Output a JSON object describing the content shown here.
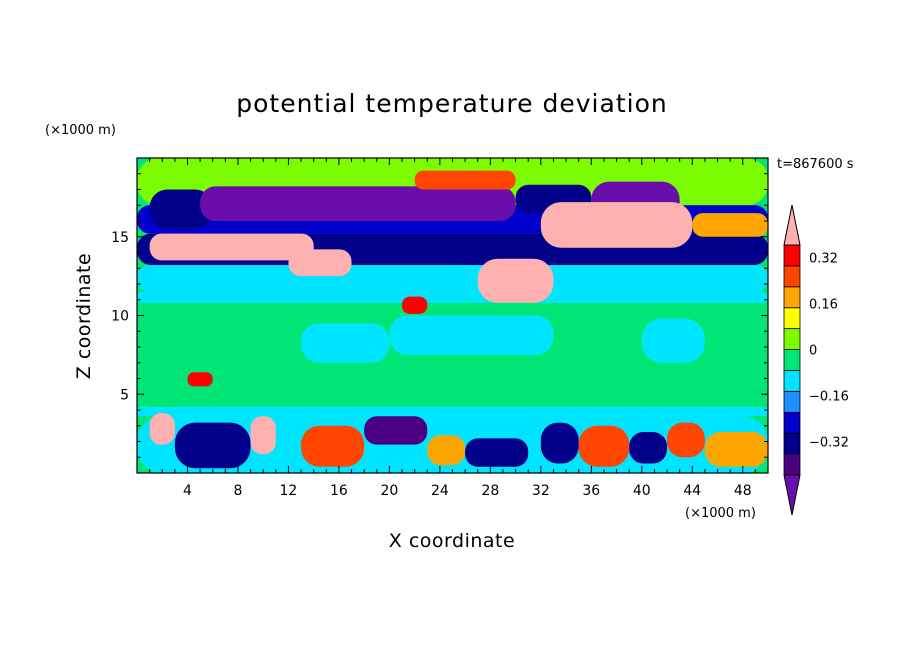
{
  "chart_data": {
    "type": "heatmap",
    "title": "potential temperature deviation",
    "xlabel": "X coordinate",
    "ylabel": "Z coordinate",
    "x_unit": "(×1000 m)",
    "y_unit": "(×1000 m)",
    "time_label": "t=867600 s",
    "xlim": [
      0,
      50
    ],
    "ylim": [
      0,
      20
    ],
    "x_ticks": [
      4,
      8,
      12,
      16,
      20,
      24,
      28,
      32,
      36,
      40,
      44,
      48
    ],
    "y_ticks": [
      5,
      10,
      15
    ],
    "colorbar": {
      "levels": [
        -0.48,
        -0.4,
        -0.32,
        -0.24,
        -0.16,
        -0.08,
        0,
        0.08,
        0.16,
        0.24,
        0.32,
        0.4,
        0.48
      ],
      "colors": [
        "#6a0dad",
        "#4b0082",
        "#00008b",
        "#0000cd",
        "#1e90ff",
        "#00e5ff",
        "#00e676",
        "#7cfc00",
        "#ffff00",
        "#ffa500",
        "#ff4500",
        "#ff0000",
        "#ffb0b0"
      ],
      "tick_values": [
        -0.32,
        -0.16,
        0,
        0.16,
        0.32
      ],
      "tick_labels": [
        "−0.32",
        "−0.16",
        "0",
        "0.16",
        "0.32"
      ]
    },
    "background_value": 0.04,
    "regions": [
      {
        "x": [
          0,
          50
        ],
        "z": [
          17.0,
          20.0
        ],
        "value": 0.12
      },
      {
        "x": [
          0,
          50
        ],
        "z": [
          15.2,
          17.0
        ],
        "value": -0.2
      },
      {
        "x": [
          0,
          50
        ],
        "z": [
          13.2,
          15.2
        ],
        "value": -0.36
      },
      {
        "x": [
          0,
          50
        ],
        "z": [
          11.5,
          13.2
        ],
        "value": -0.12
      },
      {
        "x": [
          0,
          50
        ],
        "z": [
          10.8,
          11.5
        ],
        "value": -0.04
      },
      {
        "x": [
          0,
          50
        ],
        "z": [
          3.6,
          4.2
        ],
        "value": -0.04
      },
      {
        "x": [
          1,
          6
        ],
        "z": [
          15.5,
          18.0
        ],
        "value": -0.28
      },
      {
        "x": [
          5,
          30
        ],
        "z": [
          16.0,
          18.2
        ],
        "value": -0.44
      },
      {
        "x": [
          22,
          30
        ],
        "z": [
          18.0,
          19.2
        ],
        "value": 0.32
      },
      {
        "x": [
          30,
          36
        ],
        "z": [
          16.5,
          18.3
        ],
        "value": -0.28
      },
      {
        "x": [
          36,
          43
        ],
        "z": [
          16.0,
          18.5
        ],
        "value": -0.44
      },
      {
        "x": [
          44,
          50
        ],
        "z": [
          15.0,
          16.5
        ],
        "value": 0.24
      },
      {
        "x": [
          1,
          14
        ],
        "z": [
          13.5,
          15.2
        ],
        "value": 0.48
      },
      {
        "x": [
          12,
          17
        ],
        "z": [
          12.5,
          14.2
        ],
        "value": 0.48
      },
      {
        "x": [
          32,
          44
        ],
        "z": [
          14.3,
          17.2
        ],
        "value": 0.48
      },
      {
        "x": [
          27,
          33
        ],
        "z": [
          10.8,
          13.6
        ],
        "value": 0.48
      },
      {
        "x": [
          21,
          23
        ],
        "z": [
          10.1,
          11.2
        ],
        "value": 0.4
      },
      {
        "x": [
          13,
          20
        ],
        "z": [
          7.0,
          9.5
        ],
        "value": -0.04
      },
      {
        "x": [
          20,
          33
        ],
        "z": [
          7.5,
          10.0
        ],
        "value": -0.04
      },
      {
        "x": [
          40,
          45
        ],
        "z": [
          7.0,
          9.8
        ],
        "value": -0.04
      },
      {
        "x": [
          0,
          50
        ],
        "z": [
          0.0,
          3.6
        ],
        "value": -0.08
      },
      {
        "x": [
          1,
          3
        ],
        "z": [
          1.8,
          3.8
        ],
        "value": 0.48
      },
      {
        "x": [
          3,
          9
        ],
        "z": [
          0.3,
          3.2
        ],
        "value": -0.36
      },
      {
        "x": [
          9,
          11
        ],
        "z": [
          1.2,
          3.6
        ],
        "value": 0.48
      },
      {
        "x": [
          13,
          18
        ],
        "z": [
          0.4,
          3.0
        ],
        "value": 0.32
      },
      {
        "x": [
          18,
          23
        ],
        "z": [
          1.8,
          3.6
        ],
        "value": -0.4
      },
      {
        "x": [
          23,
          26
        ],
        "z": [
          0.5,
          2.4
        ],
        "value": 0.24
      },
      {
        "x": [
          26,
          31
        ],
        "z": [
          0.4,
          2.2
        ],
        "value": -0.32
      },
      {
        "x": [
          32,
          35
        ],
        "z": [
          0.6,
          3.2
        ],
        "value": -0.36
      },
      {
        "x": [
          35,
          39
        ],
        "z": [
          0.4,
          3.0
        ],
        "value": 0.32
      },
      {
        "x": [
          39,
          42
        ],
        "z": [
          0.6,
          2.6
        ],
        "value": -0.36
      },
      {
        "x": [
          42,
          45
        ],
        "z": [
          1.0,
          3.2
        ],
        "value": 0.32
      },
      {
        "x": [
          45,
          50
        ],
        "z": [
          0.4,
          2.6
        ],
        "value": 0.24
      },
      {
        "x": [
          4,
          6
        ],
        "z": [
          5.5,
          6.4
        ],
        "value": 0.4
      }
    ]
  }
}
